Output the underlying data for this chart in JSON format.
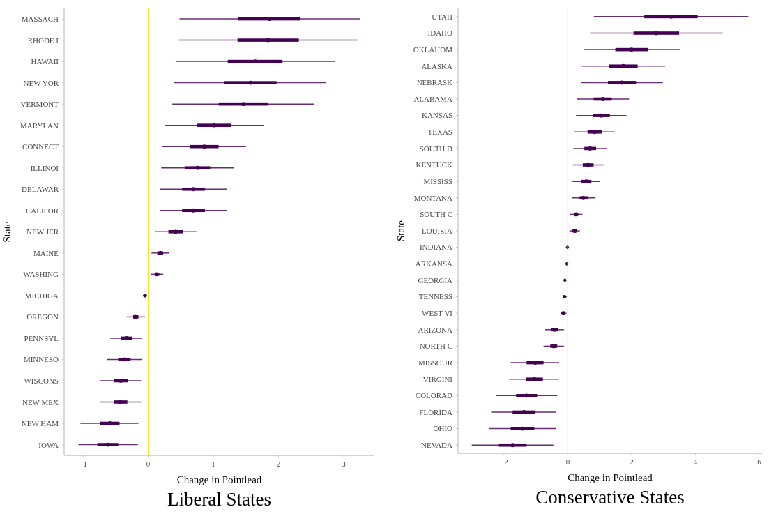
{
  "chart_data": [
    {
      "type": "box",
      "orientation": "horizontal",
      "title": "Liberal States",
      "xlabel": "Change in Pointlead",
      "ylabel": "State",
      "categories": [
        "MASSACH",
        "RHODE I",
        "HAWAII",
        "NEW YOR",
        "VERMONT",
        "MARYLAN",
        "CONNECT",
        "ILLINOI",
        "DELAWAR",
        "CALIFOR",
        "NEW JER",
        "MAINE",
        "WASHING",
        "MICHIGA",
        "OREGON",
        "PENNSYL",
        "MINNESO",
        "WISCONS",
        "NEW MEX",
        "NEW HAM",
        "IOWA"
      ],
      "series": [
        {
          "color": "#440154",
          "boxes": [
            {
              "low": 0.48,
              "q1": 1.38,
              "median": 1.86,
              "q3": 2.33,
              "high": 3.25
            },
            {
              "low": 0.47,
              "q1": 1.37,
              "median": 1.84,
              "q3": 2.31,
              "high": 3.21
            },
            {
              "low": 0.42,
              "q1": 1.22,
              "median": 1.64,
              "q3": 2.06,
              "high": 2.87
            },
            {
              "low": 0.4,
              "q1": 1.16,
              "median": 1.57,
              "q3": 1.97,
              "high": 2.73
            },
            {
              "low": 0.37,
              "q1": 1.08,
              "median": 1.46,
              "q3": 1.84,
              "high": 2.55
            },
            {
              "low": 0.26,
              "q1": 0.75,
              "median": 1.01,
              "q3": 1.27,
              "high": 1.77
            },
            {
              "low": 0.22,
              "q1": 0.64,
              "median": 0.86,
              "q3": 1.08,
              "high": 1.5
            },
            {
              "low": 0.2,
              "q1": 0.56,
              "median": 0.76,
              "q3": 0.95,
              "high": 1.32
            },
            {
              "low": 0.18,
              "q1": 0.52,
              "median": 0.69,
              "q3": 0.87,
              "high": 1.21
            },
            {
              "low": 0.18,
              "q1": 0.52,
              "median": 0.69,
              "q3": 0.87,
              "high": 1.21
            },
            {
              "low": 0.11,
              "q1": 0.31,
              "median": 0.42,
              "q3": 0.53,
              "high": 0.74
            },
            {
              "low": 0.05,
              "q1": 0.14,
              "median": 0.19,
              "q3": 0.23,
              "high": 0.32
            },
            {
              "low": 0.04,
              "q1": 0.1,
              "median": 0.13,
              "q3": 0.17,
              "high": 0.23
            },
            {
              "low": -0.08,
              "q1": -0.06,
              "median": -0.05,
              "q3": -0.04,
              "high": -0.02
            },
            {
              "low": -0.33,
              "q1": -0.23,
              "median": -0.2,
              "q3": -0.15,
              "high": -0.05
            },
            {
              "low": -0.58,
              "q1": -0.42,
              "median": -0.33,
              "q3": -0.25,
              "high": -0.09
            },
            {
              "low": -0.63,
              "q1": -0.46,
              "median": -0.36,
              "q3": -0.27,
              "high": -0.09
            },
            {
              "low": -0.74,
              "q1": -0.53,
              "median": -0.42,
              "q3": -0.31,
              "high": -0.11
            },
            {
              "low": -0.74,
              "q1": -0.53,
              "median": -0.43,
              "q3": -0.32,
              "high": -0.11
            },
            {
              "low": -1.04,
              "q1": -0.74,
              "median": -0.59,
              "q3": -0.44,
              "high": -0.15
            },
            {
              "low": -1.07,
              "q1": -0.78,
              "median": -0.62,
              "q3": -0.46,
              "high": -0.16
            }
          ]
        }
      ],
      "xlim": [
        -1.29,
        3.47
      ],
      "xticks": [
        {
          "value": -1,
          "label": "−1"
        },
        0,
        1,
        2,
        3
      ],
      "ref_lines": [
        {
          "axis": "x",
          "value": 0,
          "color": "#fde725"
        }
      ]
    },
    {
      "type": "box",
      "orientation": "horizontal",
      "title": "Conservative States",
      "xlabel": "Change in Pointlead",
      "ylabel": "State",
      "categories": [
        "UTAH",
        "IDAHO",
        "OKLAHOM",
        "ALASKA",
        "NEBRASK",
        "ALABAMA",
        "KANSAS",
        "TEXAS",
        "SOUTH D",
        "KENTUCK",
        "MISSISS",
        "MONTANA",
        "SOUTH C",
        "LOUISIA",
        "INDIANA",
        "ARKANSA",
        "GEORGIA",
        "TENNESS",
        "WEST VI",
        "ARIZONA",
        "NORTH C",
        "MISSOUR",
        "VIRGINI",
        "COLORAD",
        "FLORIDA",
        "OHIO",
        "NEVADA"
      ],
      "series": [
        {
          "color": "#440154",
          "boxes": [
            {
              "low": 0.82,
              "q1": 2.4,
              "median": 3.24,
              "q3": 4.07,
              "high": 5.66
            },
            {
              "low": 0.7,
              "q1": 2.06,
              "median": 2.77,
              "q3": 3.49,
              "high": 4.86
            },
            {
              "low": 0.51,
              "q1": 1.49,
              "median": 2.0,
              "q3": 2.52,
              "high": 3.51
            },
            {
              "low": 0.44,
              "q1": 1.29,
              "median": 1.74,
              "q3": 2.19,
              "high": 3.05
            },
            {
              "low": 0.43,
              "q1": 1.26,
              "median": 1.7,
              "q3": 2.14,
              "high": 2.98
            },
            {
              "low": 0.28,
              "q1": 0.81,
              "median": 1.1,
              "q3": 1.38,
              "high": 1.92
            },
            {
              "low": 0.26,
              "q1": 0.78,
              "median": 1.05,
              "q3": 1.32,
              "high": 1.84
            },
            {
              "low": 0.21,
              "q1": 0.62,
              "median": 0.84,
              "q3": 1.06,
              "high": 1.47
            },
            {
              "low": 0.17,
              "q1": 0.52,
              "median": 0.7,
              "q3": 0.89,
              "high": 1.23
            },
            {
              "low": 0.16,
              "q1": 0.47,
              "median": 0.64,
              "q3": 0.81,
              "high": 1.12
            },
            {
              "low": 0.15,
              "q1": 0.43,
              "median": 0.58,
              "q3": 0.74,
              "high": 1.02
            },
            {
              "low": 0.12,
              "q1": 0.37,
              "median": 0.49,
              "q3": 0.63,
              "high": 0.87
            },
            {
              "low": 0.06,
              "q1": 0.19,
              "median": 0.26,
              "q3": 0.33,
              "high": 0.46
            },
            {
              "low": 0.05,
              "q1": 0.15,
              "median": 0.22,
              "q3": 0.28,
              "high": 0.38
            },
            {
              "low": -0.06,
              "q1": -0.03,
              "median": -0.01,
              "q3": 0.01,
              "high": 0.04
            },
            {
              "low": -0.08,
              "q1": -0.05,
              "median": -0.03,
              "q3": -0.01,
              "high": 0.02
            },
            {
              "low": -0.14,
              "q1": -0.11,
              "median": -0.09,
              "q3": -0.07,
              "high": -0.04
            },
            {
              "low": -0.16,
              "q1": -0.13,
              "median": -0.1,
              "q3": -0.08,
              "high": -0.04
            },
            {
              "low": -0.21,
              "q1": -0.17,
              "median": -0.14,
              "q3": -0.1,
              "high": -0.04
            },
            {
              "low": -0.73,
              "q1": -0.52,
              "median": -0.42,
              "q3": -0.31,
              "high": -0.12
            },
            {
              "low": -0.76,
              "q1": -0.55,
              "median": -0.44,
              "q3": -0.33,
              "high": -0.12
            },
            {
              "low": -1.79,
              "q1": -1.29,
              "median": -1.02,
              "q3": -0.76,
              "high": -0.27
            },
            {
              "low": -1.84,
              "q1": -1.32,
              "median": -1.05,
              "q3": -0.78,
              "high": -0.28
            },
            {
              "low": -2.26,
              "q1": -1.62,
              "median": -1.29,
              "q3": -0.96,
              "high": -0.33
            },
            {
              "low": -2.4,
              "q1": -1.73,
              "median": -1.37,
              "q3": -1.02,
              "high": -0.36
            },
            {
              "low": -2.48,
              "q1": -1.79,
              "median": -1.42,
              "q3": -1.05,
              "high": -0.37
            },
            {
              "low": -3.01,
              "q1": -2.16,
              "median": -1.73,
              "q3": -1.29,
              "high": -0.45
            }
          ]
        }
      ],
      "xlim": [
        -3.44,
        6.09
      ],
      "xticks": [
        {
          "value": -2,
          "label": "−2"
        },
        0,
        2,
        4,
        6
      ],
      "ref_lines": [
        {
          "axis": "x",
          "value": 0,
          "color": "#fde725"
        }
      ]
    }
  ]
}
